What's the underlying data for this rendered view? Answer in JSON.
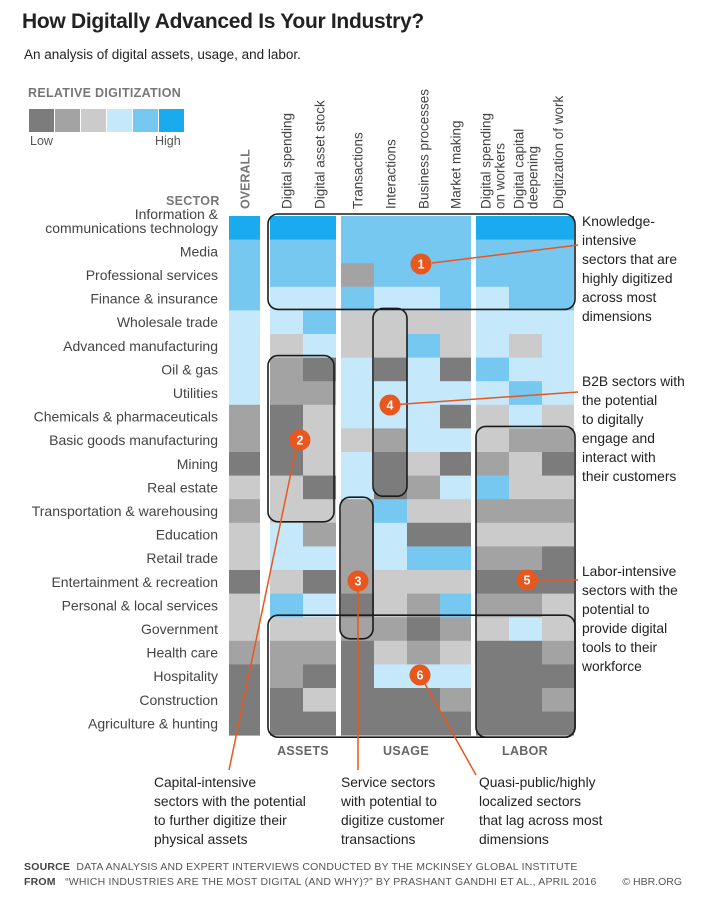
{
  "title": "How Digitally Advanced Is Your Industry?",
  "subtitle": "An analysis of digital assets, usage, and labor.",
  "legend": {
    "title": "RELATIVE DIGITIZATION",
    "low": "Low",
    "high": "High",
    "colors": [
      "#7c7c7c",
      "#a3a3a3",
      "#cbcbcb",
      "#c5e8fa",
      "#77c8f1",
      "#1aaaee"
    ]
  },
  "sector_header": "SECTOR",
  "chart_data": {
    "type": "heatmap",
    "title": "How Digitally Advanced Is Your Industry?",
    "color_scale": "levels 0 (Low) to 5 (High)",
    "overall_column": "OVERALL",
    "column_groups": [
      {
        "label": "ASSETS",
        "columns": [
          "Digital spending",
          "Digital asset stock"
        ]
      },
      {
        "label": "USAGE",
        "columns": [
          "Transactions",
          "Interactions",
          "Business processes",
          "Market making"
        ]
      },
      {
        "label": "LABOR",
        "columns": [
          "Digital spending on workers",
          "Digital capital deepening",
          "Digitization of work"
        ]
      }
    ],
    "columns": [
      "OVERALL",
      "Digital spending",
      "Digital asset stock",
      "Transactions",
      "Interactions",
      "Business processes",
      "Market making",
      "Digital spending on workers",
      "Digital capital deepening",
      "Digitization of work"
    ],
    "rows": [
      {
        "sector": "Information & communications technology",
        "values": [
          5,
          5,
          5,
          4,
          4,
          4,
          4,
          5,
          5,
          5
        ]
      },
      {
        "sector": "Media",
        "values": [
          4,
          4,
          4,
          4,
          4,
          4,
          4,
          4,
          4,
          4
        ]
      },
      {
        "sector": "Professional services",
        "values": [
          4,
          4,
          4,
          1,
          4,
          4,
          4,
          4,
          4,
          4
        ]
      },
      {
        "sector": "Finance & insurance",
        "values": [
          4,
          3,
          3,
          4,
          3,
          3,
          4,
          3,
          4,
          4
        ]
      },
      {
        "sector": "Wholesale trade",
        "values": [
          3,
          3,
          4,
          2,
          2,
          2,
          2,
          3,
          3,
          3
        ]
      },
      {
        "sector": "Advanced manufacturing",
        "values": [
          3,
          2,
          3,
          2,
          2,
          4,
          2,
          3,
          2,
          3
        ]
      },
      {
        "sector": "Oil & gas",
        "values": [
          3,
          1,
          0,
          3,
          0,
          3,
          0,
          4,
          3,
          3
        ]
      },
      {
        "sector": "Utilities",
        "values": [
          3,
          1,
          1,
          3,
          3,
          3,
          3,
          3,
          4,
          3
        ]
      },
      {
        "sector": "Chemicals & pharmaceuticals",
        "values": [
          1,
          0,
          2,
          3,
          3,
          3,
          0,
          2,
          3,
          2
        ]
      },
      {
        "sector": "Basic goods manufacturing",
        "values": [
          1,
          0,
          2,
          2,
          1,
          3,
          3,
          2,
          1,
          1
        ]
      },
      {
        "sector": "Mining",
        "values": [
          0,
          0,
          2,
          3,
          0,
          2,
          0,
          1,
          2,
          0
        ]
      },
      {
        "sector": "Real estate",
        "values": [
          2,
          2,
          0,
          3,
          0,
          1,
          3,
          4,
          2,
          2
        ]
      },
      {
        "sector": "Transportation & warehousing",
        "values": [
          1,
          2,
          2,
          1,
          4,
          2,
          2,
          1,
          1,
          1
        ]
      },
      {
        "sector": "Education",
        "values": [
          2,
          3,
          1,
          1,
          3,
          0,
          0,
          2,
          2,
          2
        ]
      },
      {
        "sector": "Retail trade",
        "values": [
          2,
          3,
          3,
          1,
          3,
          4,
          4,
          1,
          1,
          0
        ]
      },
      {
        "sector": "Entertainment & recreation",
        "values": [
          0,
          2,
          0,
          1,
          2,
          2,
          2,
          0,
          0,
          0
        ]
      },
      {
        "sector": "Personal & local services",
        "values": [
          2,
          4,
          3,
          0,
          2,
          1,
          4,
          1,
          1,
          2
        ]
      },
      {
        "sector": "Government",
        "values": [
          2,
          2,
          2,
          1,
          1,
          0,
          1,
          2,
          3,
          2
        ]
      },
      {
        "sector": "Health care",
        "values": [
          1,
          1,
          1,
          0,
          2,
          1,
          2,
          0,
          0,
          1
        ]
      },
      {
        "sector": "Hospitality",
        "values": [
          0,
          1,
          0,
          0,
          3,
          3,
          3,
          0,
          0,
          0
        ]
      },
      {
        "sector": "Construction",
        "values": [
          0,
          0,
          2,
          0,
          0,
          0,
          1,
          0,
          0,
          1
        ]
      },
      {
        "sector": "Agriculture & hunting",
        "values": [
          0,
          0,
          0,
          0,
          0,
          0,
          0,
          0,
          0,
          0
        ]
      }
    ]
  },
  "callouts": [
    {
      "number": "1",
      "text": [
        "Knowledge-",
        "intensive",
        "sectors that are",
        "highly digitized",
        "across most",
        "dimensions"
      ]
    },
    {
      "number": "2",
      "text": [
        "Capital-intensive",
        "sectors with the potential",
        "to further digitize their",
        "physical assets"
      ]
    },
    {
      "number": "3",
      "text": [
        "Service sectors",
        "with potential to",
        "digitize customer",
        "transactions"
      ]
    },
    {
      "number": "4",
      "text": [
        "B2B sectors with",
        "the potential",
        "to digitally",
        "engage and",
        "interact with",
        "their customers"
      ]
    },
    {
      "number": "5",
      "text": [
        "Labor-intensive",
        "sectors with the",
        "potential to",
        "provide digital",
        "tools to their",
        "workforce"
      ]
    },
    {
      "number": "6",
      "text": [
        "Quasi-public/highly",
        "localized sectors",
        "that lag across most",
        "dimensions"
      ]
    }
  ],
  "annotation_color": "#e8571e",
  "footer": {
    "source_label": "SOURCE",
    "source_text": "DATA ANALYSIS AND EXPERT INTERVIEWS CONDUCTED BY THE MCKINSEY GLOBAL INSTITUTE",
    "from_label": "FROM",
    "from_text": "“WHICH INDUSTRIES ARE THE MOST DIGITAL (AND WHY)?” BY PRASHANT GANDHI ET AL., APRIL 2016",
    "credit": "© HBR.ORG"
  }
}
